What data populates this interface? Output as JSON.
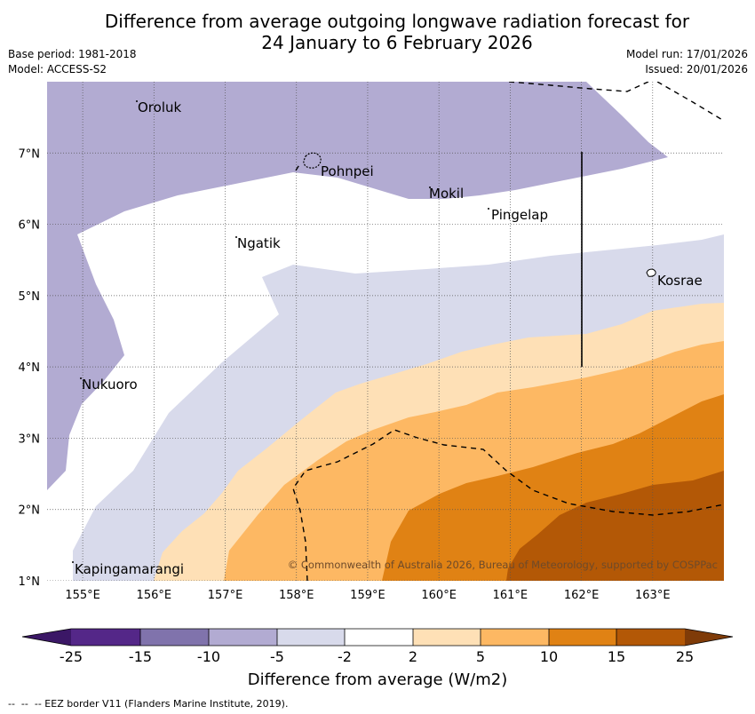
{
  "title": {
    "line1": "Difference from average outgoing longwave radiation forecast for",
    "line2": "24 January to 6 February 2026"
  },
  "meta_left": {
    "base_period": "Base period: 1981-2018",
    "model": "Model: ACCESS-S2"
  },
  "meta_right": {
    "model_run": "Model run: 17/01/2026",
    "issued": "Issued: 20/01/2026"
  },
  "map": {
    "lon_range": [
      154.5,
      164.0
    ],
    "lat_range": [
      1.0,
      8.0
    ],
    "lon_ticks": [
      "155°E",
      "156°E",
      "157°E",
      "158°E",
      "159°E",
      "160°E",
      "161°E",
      "162°E",
      "163°E"
    ],
    "lat_ticks": [
      "1°N",
      "2°N",
      "3°N",
      "4°N",
      "5°N",
      "6°N",
      "7°N"
    ],
    "places": [
      "Oroluk",
      "Pohnpei",
      "Mokil",
      "Pingelap",
      "Ngatik",
      "Kosrae",
      "Nukuoro",
      "Kapingamarangi"
    ],
    "copyright": "© Commonwealth of Australia 2026, Bureau of Meteorology, supported by COSPPac"
  },
  "colorbar": {
    "title": "Difference from average (W/m2)",
    "labels": [
      "-25",
      "-15",
      "-10",
      "-5",
      "-2",
      "2",
      "5",
      "10",
      "15",
      "25"
    ],
    "colors": {
      "under": "#3b1766",
      "c1": "#542788",
      "c2": "#8073ac",
      "c3": "#b2abd2",
      "c4": "#d8daeb",
      "c5": "#ffffff",
      "c6": "#fee0b6",
      "c7": "#fdb863",
      "c8": "#e08214",
      "c9": "#b35806",
      "over": "#7f3b08"
    }
  },
  "footer": "--  --  -- EEZ border V11 (Flanders Marine Institute, 2019)."
}
